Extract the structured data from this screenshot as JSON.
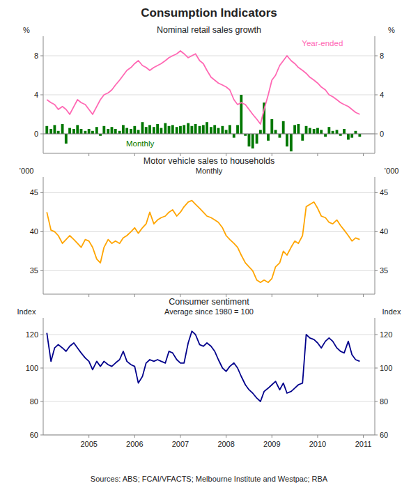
{
  "title": "Consumption Indicators",
  "source": "Sources: ABS; FCAI/VFACTS; Melbourne Institute and Westpac; RBA",
  "chart_data": [
    {
      "type": "bar",
      "title": "Nominal retail sales growth",
      "ylabel": "%",
      "y2label": "%",
      "xlim": [
        2004.0,
        2011.25
      ],
      "xticks": [
        2005,
        2006,
        2007,
        2008,
        2009,
        2010,
        2011
      ],
      "ylim": [
        -2,
        10
      ],
      "yticks": [
        0,
        4,
        8
      ],
      "y2lim": [
        -2,
        10
      ],
      "y2ticks": [
        0,
        4,
        8
      ],
      "grid": true,
      "tick_labels": "y",
      "x": [
        2004.08,
        2004.17,
        2004.25,
        2004.33,
        2004.42,
        2004.5,
        2004.58,
        2004.67,
        2004.75,
        2004.83,
        2004.92,
        2005.0,
        2005.08,
        2005.17,
        2005.25,
        2005.33,
        2005.42,
        2005.5,
        2005.58,
        2005.67,
        2005.75,
        2005.83,
        2005.92,
        2006.0,
        2006.08,
        2006.17,
        2006.25,
        2006.33,
        2006.42,
        2006.5,
        2006.58,
        2006.67,
        2006.75,
        2006.83,
        2006.92,
        2007.0,
        2007.08,
        2007.17,
        2007.25,
        2007.33,
        2007.42,
        2007.5,
        2007.58,
        2007.67,
        2007.75,
        2007.83,
        2007.92,
        2008.0,
        2008.08,
        2008.17,
        2008.25,
        2008.33,
        2008.42,
        2008.5,
        2008.58,
        2008.67,
        2008.75,
        2008.83,
        2008.92,
        2009.0,
        2009.08,
        2009.17,
        2009.25,
        2009.33,
        2009.42,
        2009.5,
        2009.58,
        2009.67,
        2009.75,
        2009.83,
        2009.92,
        2010.0,
        2010.08,
        2010.17,
        2010.25,
        2010.33,
        2010.42,
        2010.5,
        2010.58,
        2010.67,
        2010.75,
        2010.83,
        2010.92
      ],
      "series": [
        {
          "name": "Monthly",
          "type": "bar",
          "color": "#007700",
          "values": [
            0.8,
            0.5,
            0.9,
            0.3,
            1.0,
            -1.0,
            0.6,
            0.5,
            0.9,
            0.5,
            0.3,
            0.5,
            0.3,
            0.7,
            -0.2,
            0.8,
            0.5,
            0.7,
            0.5,
            0.3,
            0.9,
            0.6,
            0.5,
            0.8,
            0.4,
            1.2,
            0.7,
            0.9,
            0.7,
            1.0,
            0.6,
            1.1,
            0.8,
            0.9,
            0.7,
            0.8,
            0.9,
            1.1,
            0.8,
            1.0,
            0.8,
            0.9,
            1.2,
            0.7,
            0.9,
            0.6,
            0.8,
            0.4,
            0.9,
            -0.4,
            0.9,
            4.0,
            -0.2,
            -1.3,
            -1.5,
            -1.0,
            0.4,
            3.2,
            -0.7,
            1.5,
            0.4,
            -0.4,
            1.3,
            -1.3,
            -1.8,
            0.9,
            1.0,
            -0.7,
            0.8,
            0.6,
            0.5,
            0.6,
            0.4,
            -0.3,
            0.7,
            0.3,
            0.4,
            -0.2,
            0.5,
            -0.6,
            -0.4,
            0.3,
            -0.3
          ]
        },
        {
          "name": "Year-ended",
          "type": "line",
          "color": "#FF69B4",
          "values": [
            3.5,
            3.2,
            3.0,
            2.5,
            2.8,
            2.5,
            2.0,
            2.8,
            3.5,
            3.2,
            3.0,
            2.5,
            2.0,
            2.8,
            3.5,
            4.0,
            4.2,
            4.5,
            5.0,
            5.5,
            6.0,
            6.5,
            6.8,
            7.2,
            7.5,
            7.0,
            6.8,
            6.5,
            6.8,
            7.0,
            7.2,
            7.5,
            7.8,
            8.0,
            8.2,
            8.5,
            8.2,
            7.8,
            8.0,
            8.2,
            7.5,
            7.2,
            6.5,
            5.8,
            5.5,
            5.2,
            5.0,
            4.8,
            4.5,
            3.5,
            3.0,
            3.2,
            3.0,
            2.5,
            2.0,
            1.5,
            1.0,
            2.5,
            4.0,
            5.5,
            6.0,
            7.0,
            7.5,
            8.0,
            7.5,
            7.2,
            6.8,
            6.5,
            6.2,
            5.8,
            5.5,
            5.2,
            4.8,
            4.5,
            4.0,
            3.8,
            3.5,
            3.2,
            3.0,
            2.8,
            2.5,
            2.2,
            2.0
          ]
        }
      ]
    },
    {
      "type": "line",
      "title": "Motor vehicle sales to households",
      "subtitle": "Monthly",
      "ylabel": "’000",
      "y2label": "’000",
      "xlim": [
        2004.0,
        2011.25
      ],
      "xticks": [
        2005,
        2006,
        2007,
        2008,
        2009,
        2010,
        2011
      ],
      "ylim": [
        32,
        47
      ],
      "yticks": [
        35,
        40,
        45
      ],
      "y2lim": [
        32,
        47
      ],
      "y2ticks": [
        35,
        40,
        45
      ],
      "grid": true,
      "tick_labels": "y",
      "color": "#FFA500",
      "x": [
        2004.08,
        2004.17,
        2004.25,
        2004.33,
        2004.42,
        2004.5,
        2004.58,
        2004.67,
        2004.75,
        2004.83,
        2004.92,
        2005.0,
        2005.08,
        2005.17,
        2005.25,
        2005.33,
        2005.42,
        2005.5,
        2005.58,
        2005.67,
        2005.75,
        2005.83,
        2005.92,
        2006.0,
        2006.08,
        2006.17,
        2006.25,
        2006.33,
        2006.42,
        2006.5,
        2006.58,
        2006.67,
        2006.75,
        2006.83,
        2006.92,
        2007.0,
        2007.08,
        2007.17,
        2007.25,
        2007.33,
        2007.42,
        2007.5,
        2007.58,
        2007.67,
        2007.75,
        2007.83,
        2007.92,
        2008.0,
        2008.08,
        2008.17,
        2008.25,
        2008.33,
        2008.42,
        2008.5,
        2008.58,
        2008.67,
        2008.75,
        2008.83,
        2008.92,
        2009.0,
        2009.08,
        2009.17,
        2009.25,
        2009.33,
        2009.42,
        2009.5,
        2009.58,
        2009.67,
        2009.75,
        2009.83,
        2009.92,
        2010.0,
        2010.08,
        2010.17,
        2010.25,
        2010.33,
        2010.42,
        2010.5,
        2010.58,
        2010.67,
        2010.75,
        2010.83,
        2010.92
      ],
      "values": [
        42.5,
        40.2,
        40.0,
        39.5,
        38.5,
        39.0,
        39.5,
        39.0,
        38.5,
        38.0,
        39.0,
        38.8,
        38.0,
        36.5,
        36.0,
        38.0,
        39.0,
        38.5,
        38.8,
        38.5,
        39.2,
        39.5,
        40.0,
        40.5,
        39.8,
        40.5,
        41.0,
        42.5,
        41.0,
        41.5,
        41.8,
        42.0,
        42.5,
        42.8,
        42.0,
        42.5,
        43.2,
        43.8,
        44.0,
        43.5,
        43.0,
        42.5,
        42.0,
        41.8,
        41.5,
        41.2,
        40.5,
        39.5,
        39.0,
        38.5,
        38.0,
        37.0,
        36.0,
        35.5,
        35.0,
        33.8,
        33.5,
        33.8,
        33.5,
        34.0,
        35.5,
        36.0,
        37.5,
        37.0,
        38.0,
        38.8,
        38.5,
        39.5,
        43.2,
        43.5,
        43.8,
        43.0,
        42.0,
        41.8,
        41.2,
        41.0,
        41.5,
        40.8,
        40.2,
        39.5,
        38.8,
        39.2,
        39.0
      ]
    },
    {
      "type": "line",
      "title": "Consumer sentiment",
      "subtitle": "Average since 1980 = 100",
      "ylabel": "Index",
      "y2label": "Index",
      "xlim": [
        2004.0,
        2011.25
      ],
      "xticks": [
        2005,
        2006,
        2007,
        2008,
        2009,
        2010,
        2011
      ],
      "ylim": [
        60,
        130
      ],
      "yticks": [
        60,
        80,
        100,
        120
      ],
      "y2lim": [
        60,
        130
      ],
      "y2ticks": [
        60,
        80,
        100,
        120
      ],
      "grid": true,
      "color": "#00008B",
      "x": [
        2004.08,
        2004.17,
        2004.25,
        2004.33,
        2004.42,
        2004.5,
        2004.58,
        2004.67,
        2004.75,
        2004.83,
        2004.92,
        2005.0,
        2005.08,
        2005.17,
        2005.25,
        2005.33,
        2005.42,
        2005.5,
        2005.58,
        2005.67,
        2005.75,
        2005.83,
        2005.92,
        2006.0,
        2006.08,
        2006.17,
        2006.25,
        2006.33,
        2006.42,
        2006.5,
        2006.58,
        2006.67,
        2006.75,
        2006.83,
        2006.92,
        2007.0,
        2007.08,
        2007.17,
        2007.25,
        2007.33,
        2007.42,
        2007.5,
        2007.58,
        2007.67,
        2007.75,
        2007.83,
        2007.92,
        2008.0,
        2008.08,
        2008.17,
        2008.25,
        2008.33,
        2008.42,
        2008.5,
        2008.58,
        2008.67,
        2008.75,
        2008.83,
        2008.92,
        2009.0,
        2009.08,
        2009.17,
        2009.25,
        2009.33,
        2009.42,
        2009.5,
        2009.58,
        2009.67,
        2009.75,
        2009.83,
        2009.92,
        2010.0,
        2010.08,
        2010.17,
        2010.25,
        2010.33,
        2010.42,
        2010.5,
        2010.58,
        2010.67,
        2010.75,
        2010.83,
        2010.92
      ],
      "values": [
        121,
        104,
        112,
        114,
        112,
        110,
        113,
        115,
        112,
        109,
        106,
        104,
        99,
        104,
        101,
        104,
        102,
        101,
        103,
        105,
        110,
        104,
        102,
        101,
        91,
        95,
        103,
        105,
        104,
        105,
        104,
        103,
        110,
        109,
        105,
        103,
        103,
        115,
        122,
        120,
        114,
        113,
        115,
        113,
        110,
        105,
        100,
        98,
        101,
        103,
        100,
        95,
        90,
        87,
        85,
        82,
        80,
        86,
        88,
        90,
        92,
        87,
        91,
        85,
        86,
        88,
        90,
        91,
        120,
        118,
        117,
        115,
        112,
        116,
        118,
        116,
        112,
        110,
        109,
        116,
        108,
        105,
        104
      ]
    }
  ]
}
